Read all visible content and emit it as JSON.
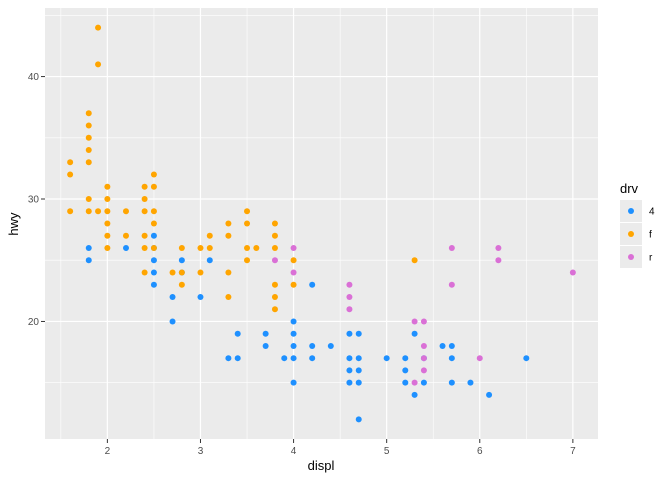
{
  "chart_data": {
    "type": "scatter",
    "title": "",
    "xlabel": "displ",
    "ylabel": "hwy",
    "xlim": [
      1.33,
      7.27
    ],
    "ylim": [
      10.4,
      45.6
    ],
    "x_ticks": [
      2,
      3,
      4,
      5,
      6,
      7
    ],
    "y_ticks": [
      20,
      30,
      40
    ],
    "grid": true,
    "legend": {
      "title": "drv",
      "position": "right",
      "entries": [
        "4",
        "f",
        "r"
      ]
    },
    "colors": {
      "4": "#1e90ff",
      "f": "#ffa500",
      "r": "#da70d6"
    },
    "series": [
      {
        "name": "4",
        "points": [
          [
            1.8,
            26
          ],
          [
            1.8,
            25
          ],
          [
            2.2,
            26
          ],
          [
            2.5,
            27
          ],
          [
            2.5,
            26
          ],
          [
            2.5,
            25
          ],
          [
            2.5,
            24
          ],
          [
            2.5,
            23
          ],
          [
            2.7,
            22
          ],
          [
            2.7,
            20
          ],
          [
            2.8,
            25
          ],
          [
            2.8,
            24
          ],
          [
            3.0,
            22
          ],
          [
            3.1,
            25
          ],
          [
            3.3,
            17
          ],
          [
            3.4,
            19
          ],
          [
            3.4,
            17
          ],
          [
            3.7,
            19
          ],
          [
            3.7,
            18
          ],
          [
            3.9,
            17
          ],
          [
            4.0,
            20
          ],
          [
            4.0,
            19
          ],
          [
            4.0,
            18
          ],
          [
            4.0,
            17
          ],
          [
            4.0,
            15
          ],
          [
            4.2,
            23
          ],
          [
            4.2,
            18
          ],
          [
            4.2,
            17
          ],
          [
            4.4,
            18
          ],
          [
            4.6,
            19
          ],
          [
            4.6,
            17
          ],
          [
            4.6,
            16
          ],
          [
            4.6,
            15
          ],
          [
            4.7,
            19
          ],
          [
            4.7,
            17
          ],
          [
            4.7,
            16
          ],
          [
            4.7,
            15
          ],
          [
            4.7,
            12
          ],
          [
            5.0,
            17
          ],
          [
            5.2,
            17
          ],
          [
            5.2,
            16
          ],
          [
            5.2,
            15
          ],
          [
            5.3,
            19
          ],
          [
            5.3,
            14
          ],
          [
            5.4,
            17
          ],
          [
            5.4,
            15
          ],
          [
            5.6,
            18
          ],
          [
            5.7,
            18
          ],
          [
            5.7,
            17
          ],
          [
            5.7,
            15
          ],
          [
            5.9,
            15
          ],
          [
            6.1,
            14
          ],
          [
            6.5,
            17
          ]
        ]
      },
      {
        "name": "f",
        "points": [
          [
            1.6,
            33
          ],
          [
            1.6,
            32
          ],
          [
            1.6,
            29
          ],
          [
            1.8,
            37
          ],
          [
            1.8,
            36
          ],
          [
            1.8,
            35
          ],
          [
            1.8,
            34
          ],
          [
            1.8,
            33
          ],
          [
            1.8,
            30
          ],
          [
            1.8,
            29
          ],
          [
            1.9,
            44
          ],
          [
            1.9,
            41
          ],
          [
            1.9,
            29
          ],
          [
            2.0,
            31
          ],
          [
            2.0,
            30
          ],
          [
            2.0,
            29
          ],
          [
            2.0,
            28
          ],
          [
            2.0,
            27
          ],
          [
            2.0,
            26
          ],
          [
            2.2,
            29
          ],
          [
            2.2,
            27
          ],
          [
            2.4,
            31
          ],
          [
            2.4,
            30
          ],
          [
            2.4,
            29
          ],
          [
            2.4,
            27
          ],
          [
            2.4,
            26
          ],
          [
            2.4,
            24
          ],
          [
            2.5,
            32
          ],
          [
            2.5,
            31
          ],
          [
            2.5,
            29
          ],
          [
            2.5,
            28
          ],
          [
            2.5,
            26
          ],
          [
            2.7,
            24
          ],
          [
            2.8,
            26
          ],
          [
            2.8,
            24
          ],
          [
            2.8,
            23
          ],
          [
            3.0,
            26
          ],
          [
            3.0,
            24
          ],
          [
            3.1,
            27
          ],
          [
            3.1,
            26
          ],
          [
            3.3,
            28
          ],
          [
            3.3,
            27
          ],
          [
            3.3,
            24
          ],
          [
            3.3,
            22
          ],
          [
            3.5,
            29
          ],
          [
            3.5,
            28
          ],
          [
            3.5,
            26
          ],
          [
            3.5,
            25
          ],
          [
            3.6,
            26
          ],
          [
            3.8,
            28
          ],
          [
            3.8,
            27
          ],
          [
            3.8,
            26
          ],
          [
            3.8,
            23
          ],
          [
            3.8,
            22
          ],
          [
            3.8,
            21
          ],
          [
            4.0,
            25
          ],
          [
            4.0,
            23
          ],
          [
            5.3,
            25
          ]
        ]
      },
      {
        "name": "r",
        "points": [
          [
            3.8,
            25
          ],
          [
            4.0,
            26
          ],
          [
            4.0,
            24
          ],
          [
            4.6,
            23
          ],
          [
            4.6,
            22
          ],
          [
            4.6,
            21
          ],
          [
            5.3,
            20
          ],
          [
            5.3,
            15
          ],
          [
            5.4,
            20
          ],
          [
            5.4,
            18
          ],
          [
            5.4,
            17
          ],
          [
            5.4,
            16
          ],
          [
            5.7,
            26
          ],
          [
            5.7,
            23
          ],
          [
            6.0,
            17
          ],
          [
            6.2,
            26
          ],
          [
            6.2,
            25
          ],
          [
            7.0,
            24
          ]
        ]
      }
    ]
  }
}
